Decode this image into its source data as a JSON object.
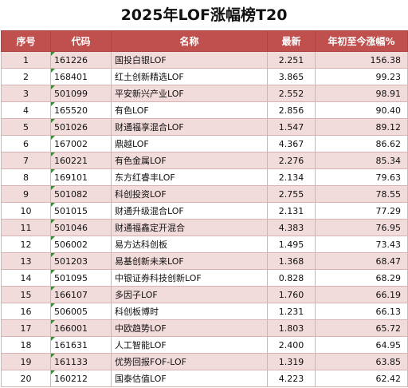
{
  "title": "2025年LOF涨幅榜T20",
  "columns": [
    "序号",
    "代码",
    "名称",
    "最新",
    "年初至今涨幅%"
  ],
  "rows": [
    {
      "rank": "1",
      "code": "161226",
      "name": "国投白银LOF",
      "latest": "2.251",
      "change": "156.38"
    },
    {
      "rank": "2",
      "code": "168401",
      "name": "红土创新精选LOF",
      "latest": "3.865",
      "change": "99.23"
    },
    {
      "rank": "3",
      "code": "501099",
      "name": "平安新兴产业LOF",
      "latest": "2.552",
      "change": "98.91"
    },
    {
      "rank": "4",
      "code": "165520",
      "name": "有色LOF",
      "latest": "2.856",
      "change": "90.40"
    },
    {
      "rank": "5",
      "code": "501026",
      "name": "财通福享混合LOF",
      "latest": "1.547",
      "change": "89.12"
    },
    {
      "rank": "6",
      "code": "167002",
      "name": "鼎越LOF",
      "latest": "4.367",
      "change": "86.62"
    },
    {
      "rank": "7",
      "code": "160221",
      "name": "有色金属LOF",
      "latest": "2.276",
      "change": "85.34"
    },
    {
      "rank": "8",
      "code": "169101",
      "name": "东方红睿丰LOF",
      "latest": "2.134",
      "change": "79.63"
    },
    {
      "rank": "9",
      "code": "501082",
      "name": "科创投资LOF",
      "latest": "2.755",
      "change": "78.55"
    },
    {
      "rank": "10",
      "code": "501015",
      "name": "财通升级混合LOF",
      "latest": "2.131",
      "change": "77.29"
    },
    {
      "rank": "11",
      "code": "501046",
      "name": "财通福鑫定开混合",
      "latest": "4.383",
      "change": "76.95"
    },
    {
      "rank": "12",
      "code": "506002",
      "name": "易方达科创板",
      "latest": "1.495",
      "change": "73.43"
    },
    {
      "rank": "13",
      "code": "501203",
      "name": "易基创新未来LOF",
      "latest": "1.368",
      "change": "68.47"
    },
    {
      "rank": "14",
      "code": "501095",
      "name": "中银证券科技创新LOF",
      "latest": "0.828",
      "change": "68.29"
    },
    {
      "rank": "15",
      "code": "166107",
      "name": "多因子LOF",
      "latest": "1.760",
      "change": "66.19"
    },
    {
      "rank": "16",
      "code": "506005",
      "name": "科创板博时",
      "latest": "1.231",
      "change": "66.13"
    },
    {
      "rank": "17",
      "code": "166001",
      "name": "中欧趋势LOF",
      "latest": "1.803",
      "change": "65.72"
    },
    {
      "rank": "18",
      "code": "161631",
      "name": "人工智能LOF",
      "latest": "2.400",
      "change": "64.95"
    },
    {
      "rank": "19",
      "code": "161133",
      "name": "优势回报FOF-LOF",
      "latest": "1.319",
      "change": "63.85"
    },
    {
      "rank": "20",
      "code": "160212",
      "name": "国泰估值LOF",
      "latest": "4.223",
      "change": "62.42"
    }
  ],
  "colors": {
    "header_bg": "#c0504d",
    "row_odd": "#f2dcdb",
    "row_even": "#ffffff"
  }
}
